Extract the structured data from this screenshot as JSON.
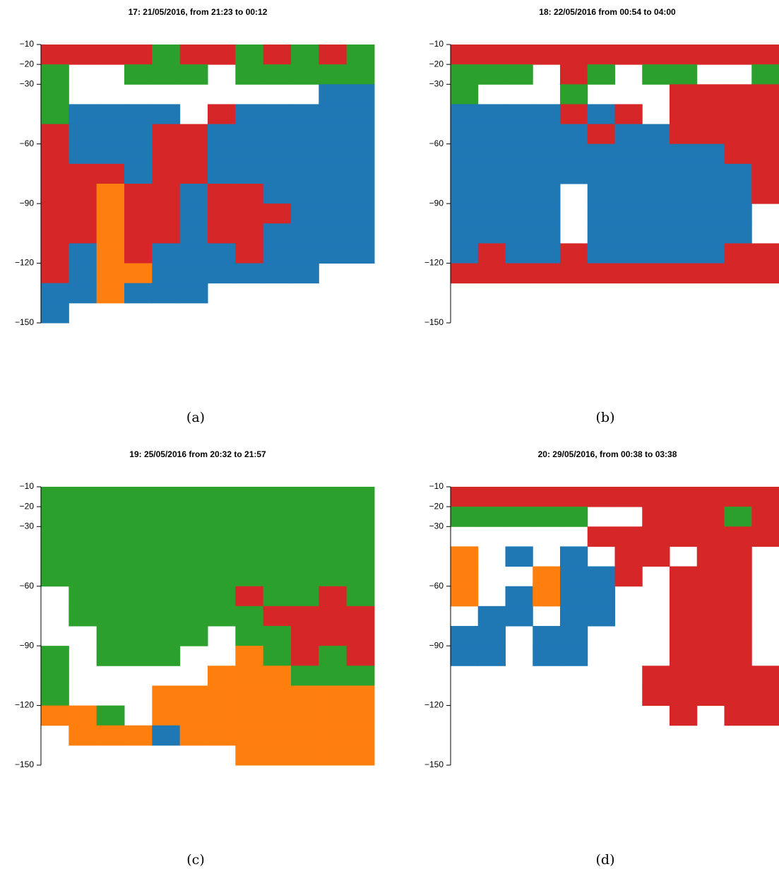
{
  "chart_data": [
    {
      "type": "echogram",
      "title": "17: 21/05/2016, from 21:23 to 00:12",
      "caption": "(a)",
      "ylim": [
        -10,
        -150
      ],
      "yticks": [
        {
          "value": -10,
          "label": "−10"
        },
        {
          "value": -20,
          "label": "−20"
        },
        {
          "value": -30,
          "label": "−30"
        },
        {
          "value": -60,
          "label": "−60"
        },
        {
          "value": -90,
          "label": "−90"
        },
        {
          "value": -120,
          "label": "−120"
        },
        {
          "value": -150,
          "label": "−150"
        }
      ],
      "depth_bins": [
        -10,
        -20,
        -30,
        -40,
        -50,
        -60,
        -70,
        -80,
        -90,
        -100,
        -110,
        -120,
        -130,
        -140,
        -150
      ],
      "colors": [
        "#1f77b4",
        "#d62728",
        "#2ca02c",
        "#ff7f0e"
      ],
      "cells": [
        [
          2,
          2,
          2,
          2,
          3,
          2,
          2,
          3,
          2,
          3,
          2,
          3
        ],
        [
          3,
          0,
          0,
          3,
          3,
          3,
          0,
          3,
          3,
          3,
          3,
          3
        ],
        [
          3,
          0,
          0,
          0,
          0,
          0,
          0,
          0,
          0,
          0,
          1,
          1
        ],
        [
          3,
          1,
          1,
          1,
          1,
          0,
          2,
          1,
          1,
          1,
          1,
          1
        ],
        [
          2,
          1,
          1,
          1,
          2,
          2,
          1,
          1,
          1,
          1,
          1,
          1
        ],
        [
          2,
          1,
          1,
          1,
          2,
          2,
          1,
          1,
          1,
          1,
          1,
          1
        ],
        [
          2,
          2,
          2,
          1,
          2,
          2,
          1,
          1,
          1,
          1,
          1,
          1
        ],
        [
          2,
          2,
          4,
          2,
          2,
          1,
          2,
          2,
          1,
          1,
          1,
          1
        ],
        [
          2,
          2,
          4,
          2,
          2,
          1,
          2,
          2,
          2,
          1,
          1,
          1
        ],
        [
          2,
          2,
          4,
          2,
          2,
          1,
          2,
          2,
          1,
          1,
          1,
          1
        ],
        [
          2,
          1,
          4,
          2,
          1,
          1,
          1,
          2,
          1,
          1,
          1,
          1
        ],
        [
          2,
          1,
          4,
          4,
          1,
          1,
          1,
          1,
          1,
          1,
          0,
          0
        ],
        [
          1,
          1,
          4,
          1,
          1,
          1,
          0,
          0,
          0,
          0,
          0,
          0
        ],
        [
          1,
          0,
          0,
          0,
          0,
          0,
          0,
          0,
          0,
          0,
          0,
          0
        ]
      ]
    },
    {
      "type": "echogram",
      "title": "18: 22/05/2016 from 00:54 to 04:00",
      "caption": "(b)",
      "ylim": [
        -10,
        -150
      ],
      "yticks": [
        {
          "value": -10,
          "label": "−10"
        },
        {
          "value": -20,
          "label": "−20"
        },
        {
          "value": -30,
          "label": "−30"
        },
        {
          "value": -60,
          "label": "−60"
        },
        {
          "value": -90,
          "label": "−90"
        },
        {
          "value": -120,
          "label": "−120"
        },
        {
          "value": -150,
          "label": "−150"
        }
      ],
      "depth_bins": [
        -10,
        -20,
        -30,
        -40,
        -50,
        -60,
        -70,
        -80,
        -90,
        -100,
        -110,
        -120,
        -130,
        -140,
        -150
      ],
      "colors": [
        "#1f77b4",
        "#d62728",
        "#2ca02c",
        "#ff7f0e"
      ],
      "cells": [
        [
          2,
          2,
          2,
          2,
          2,
          2,
          2,
          2,
          2,
          2,
          2,
          2
        ],
        [
          3,
          3,
          3,
          0,
          2,
          3,
          0,
          3,
          3,
          0,
          0,
          3
        ],
        [
          3,
          0,
          0,
          0,
          3,
          0,
          0,
          0,
          2,
          2,
          2,
          2
        ],
        [
          1,
          1,
          1,
          1,
          2,
          1,
          2,
          0,
          2,
          2,
          2,
          2
        ],
        [
          1,
          1,
          1,
          1,
          1,
          2,
          1,
          1,
          2,
          2,
          2,
          2
        ],
        [
          1,
          1,
          1,
          1,
          1,
          1,
          1,
          1,
          1,
          1,
          2,
          2
        ],
        [
          1,
          1,
          1,
          1,
          1,
          1,
          1,
          1,
          1,
          1,
          1,
          2
        ],
        [
          1,
          1,
          1,
          1,
          0,
          1,
          1,
          1,
          1,
          1,
          1,
          2
        ],
        [
          1,
          1,
          1,
          1,
          0,
          1,
          1,
          1,
          1,
          1,
          1,
          0
        ],
        [
          1,
          1,
          1,
          1,
          0,
          1,
          1,
          1,
          1,
          1,
          1,
          0
        ],
        [
          1,
          2,
          1,
          1,
          2,
          1,
          1,
          1,
          1,
          1,
          2,
          2
        ],
        [
          2,
          2,
          2,
          2,
          2,
          2,
          2,
          2,
          2,
          2,
          2,
          2
        ],
        [
          0,
          0,
          0,
          0,
          0,
          0,
          0,
          0,
          0,
          0,
          0,
          0
        ],
        [
          0,
          0,
          0,
          0,
          0,
          0,
          0,
          0,
          0,
          0,
          0,
          0
        ]
      ]
    },
    {
      "type": "echogram",
      "title": "19: 25/05/2016 from 20:32 to 21:57",
      "caption": "(c)",
      "ylim": [
        -10,
        -150
      ],
      "yticks": [
        {
          "value": -10,
          "label": "−10"
        },
        {
          "value": -20,
          "label": "−20"
        },
        {
          "value": -30,
          "label": "−30"
        },
        {
          "value": -60,
          "label": "−60"
        },
        {
          "value": -90,
          "label": "−90"
        },
        {
          "value": -120,
          "label": "−120"
        },
        {
          "value": -150,
          "label": "−150"
        }
      ],
      "depth_bins": [
        -10,
        -20,
        -30,
        -40,
        -50,
        -60,
        -70,
        -80,
        -90,
        -100,
        -110,
        -120,
        -130,
        -140,
        -150
      ],
      "colors": [
        "#1f77b4",
        "#d62728",
        "#2ca02c",
        "#ff7f0e"
      ],
      "cells": [
        [
          3,
          3,
          3,
          3,
          3,
          3,
          3,
          3,
          3,
          3,
          3,
          3
        ],
        [
          3,
          3,
          3,
          3,
          3,
          3,
          3,
          3,
          3,
          3,
          3,
          3
        ],
        [
          3,
          3,
          3,
          3,
          3,
          3,
          3,
          3,
          3,
          3,
          3,
          3
        ],
        [
          3,
          3,
          3,
          3,
          3,
          3,
          3,
          3,
          3,
          3,
          3,
          3
        ],
        [
          3,
          3,
          3,
          3,
          3,
          3,
          3,
          3,
          3,
          3,
          3,
          3
        ],
        [
          0,
          3,
          3,
          3,
          3,
          3,
          3,
          2,
          3,
          3,
          2,
          3
        ],
        [
          0,
          3,
          3,
          3,
          3,
          3,
          3,
          3,
          2,
          2,
          2,
          2
        ],
        [
          0,
          0,
          3,
          3,
          3,
          3,
          0,
          3,
          3,
          2,
          2,
          2
        ],
        [
          3,
          0,
          3,
          3,
          3,
          0,
          0,
          4,
          3,
          2,
          3,
          2
        ],
        [
          3,
          0,
          0,
          0,
          0,
          0,
          4,
          4,
          4,
          3,
          3,
          3
        ],
        [
          3,
          0,
          0,
          0,
          4,
          4,
          4,
          4,
          4,
          4,
          4,
          4
        ],
        [
          4,
          4,
          3,
          0,
          4,
          4,
          4,
          4,
          4,
          4,
          4,
          4
        ],
        [
          0,
          4,
          4,
          4,
          1,
          4,
          4,
          4,
          4,
          4,
          4,
          4
        ],
        [
          0,
          0,
          0,
          0,
          0,
          0,
          0,
          4,
          4,
          4,
          4,
          4
        ]
      ]
    },
    {
      "type": "echogram",
      "title": "20: 29/05/2016, from 00:38 to 03:38",
      "caption": "(d)",
      "ylim": [
        -10,
        -150
      ],
      "yticks": [
        {
          "value": -10,
          "label": "−10"
        },
        {
          "value": -20,
          "label": "−20"
        },
        {
          "value": -30,
          "label": "−30"
        },
        {
          "value": -60,
          "label": "−60"
        },
        {
          "value": -90,
          "label": "−90"
        },
        {
          "value": -120,
          "label": "−120"
        },
        {
          "value": -150,
          "label": "−150"
        }
      ],
      "depth_bins": [
        -10,
        -20,
        -30,
        -40,
        -50,
        -60,
        -70,
        -80,
        -90,
        -100,
        -110,
        -120,
        -130,
        -140,
        -150
      ],
      "colors": [
        "#1f77b4",
        "#d62728",
        "#2ca02c",
        "#ff7f0e"
      ],
      "cells": [
        [
          2,
          2,
          2,
          2,
          2,
          2,
          2,
          2,
          2,
          2,
          2,
          2
        ],
        [
          3,
          3,
          3,
          3,
          3,
          0,
          0,
          2,
          2,
          2,
          3,
          2
        ],
        [
          0,
          0,
          0,
          0,
          0,
          2,
          2,
          2,
          2,
          2,
          2,
          2
        ],
        [
          4,
          0,
          1,
          0,
          1,
          0,
          2,
          2,
          0,
          2,
          2,
          0
        ],
        [
          4,
          0,
          0,
          4,
          1,
          1,
          2,
          0,
          2,
          2,
          2,
          0
        ],
        [
          4,
          0,
          1,
          4,
          1,
          1,
          0,
          0,
          2,
          2,
          2,
          0
        ],
        [
          0,
          1,
          1,
          0,
          1,
          1,
          0,
          0,
          2,
          2,
          2,
          0
        ],
        [
          1,
          1,
          0,
          1,
          1,
          0,
          0,
          0,
          2,
          2,
          2,
          0
        ],
        [
          1,
          1,
          0,
          1,
          1,
          0,
          0,
          0,
          2,
          2,
          2,
          0
        ],
        [
          0,
          0,
          0,
          0,
          0,
          0,
          0,
          2,
          2,
          2,
          2,
          2
        ],
        [
          0,
          0,
          0,
          0,
          0,
          0,
          0,
          2,
          2,
          2,
          2,
          2
        ],
        [
          0,
          0,
          0,
          0,
          0,
          0,
          0,
          0,
          2,
          0,
          2,
          2
        ],
        [
          0,
          0,
          0,
          0,
          0,
          0,
          0,
          0,
          0,
          0,
          0,
          0
        ],
        [
          0,
          0,
          0,
          0,
          0,
          0,
          0,
          0,
          0,
          0,
          0,
          0
        ]
      ]
    }
  ]
}
